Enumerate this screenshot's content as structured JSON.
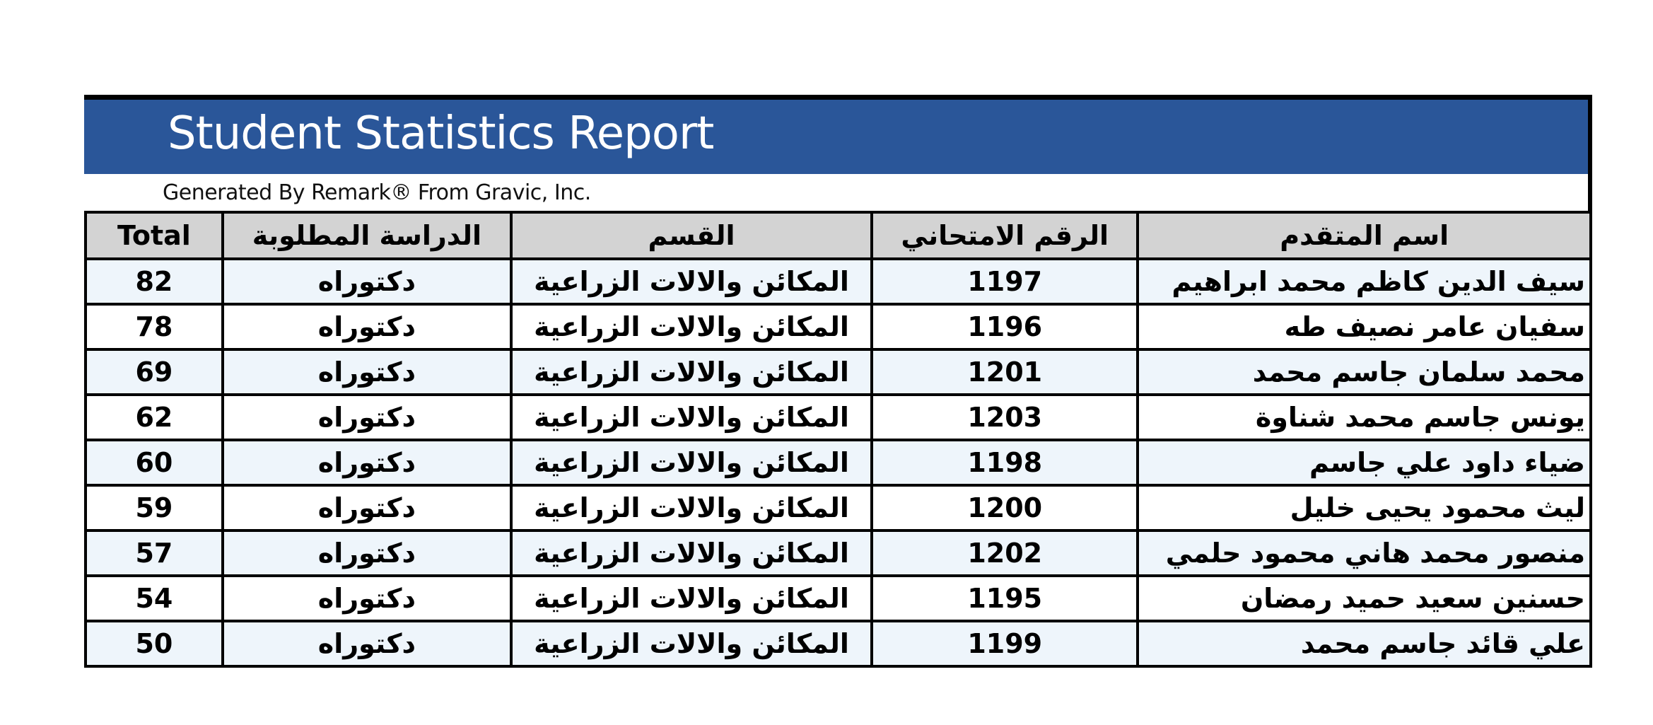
{
  "header": {
    "title": "Student Statistics Report",
    "subtitle": "Generated By Remark® From Gravic, Inc.",
    "banner_color": "#2a5699"
  },
  "table": {
    "columns": [
      "Total",
      "الدراسة المطلوبة",
      "القسم",
      "الرقم الامتحاني",
      "اسم المتقدم"
    ],
    "rows": [
      {
        "total": "82",
        "study": "دكتوراه",
        "dept": "المكائن والالات الزراعية",
        "exam_no": "1197",
        "name": "سيف الدين كاظم محمد ابراهيم"
      },
      {
        "total": "78",
        "study": "دكتوراه",
        "dept": "المكائن والالات الزراعية",
        "exam_no": "1196",
        "name": "سفيان عامر نصيف طه"
      },
      {
        "total": "69",
        "study": "دكتوراه",
        "dept": "المكائن والالات الزراعية",
        "exam_no": "1201",
        "name": "محمد سلمان جاسم محمد"
      },
      {
        "total": "62",
        "study": "دكتوراه",
        "dept": "المكائن والالات الزراعية",
        "exam_no": "1203",
        "name": "يونس جاسم محمد شناوة"
      },
      {
        "total": "60",
        "study": "دكتوراه",
        "dept": "المكائن والالات الزراعية",
        "exam_no": "1198",
        "name": "ضياء داود علي جاسم"
      },
      {
        "total": "59",
        "study": "دكتوراه",
        "dept": "المكائن والالات الزراعية",
        "exam_no": "1200",
        "name": "ليث محمود يحيى خليل"
      },
      {
        "total": "57",
        "study": "دكتوراه",
        "dept": "المكائن والالات الزراعية",
        "exam_no": "1202",
        "name": "منصور محمد هاني محمود حلمي"
      },
      {
        "total": "54",
        "study": "دكتوراه",
        "dept": "المكائن والالات الزراعية",
        "exam_no": "1195",
        "name": "حسنين سعيد حميد رمضان"
      },
      {
        "total": "50",
        "study": "دكتوراه",
        "dept": "المكائن والالات الزراعية",
        "exam_no": "1199",
        "name": "علي قائد جاسم محمد"
      }
    ]
  }
}
